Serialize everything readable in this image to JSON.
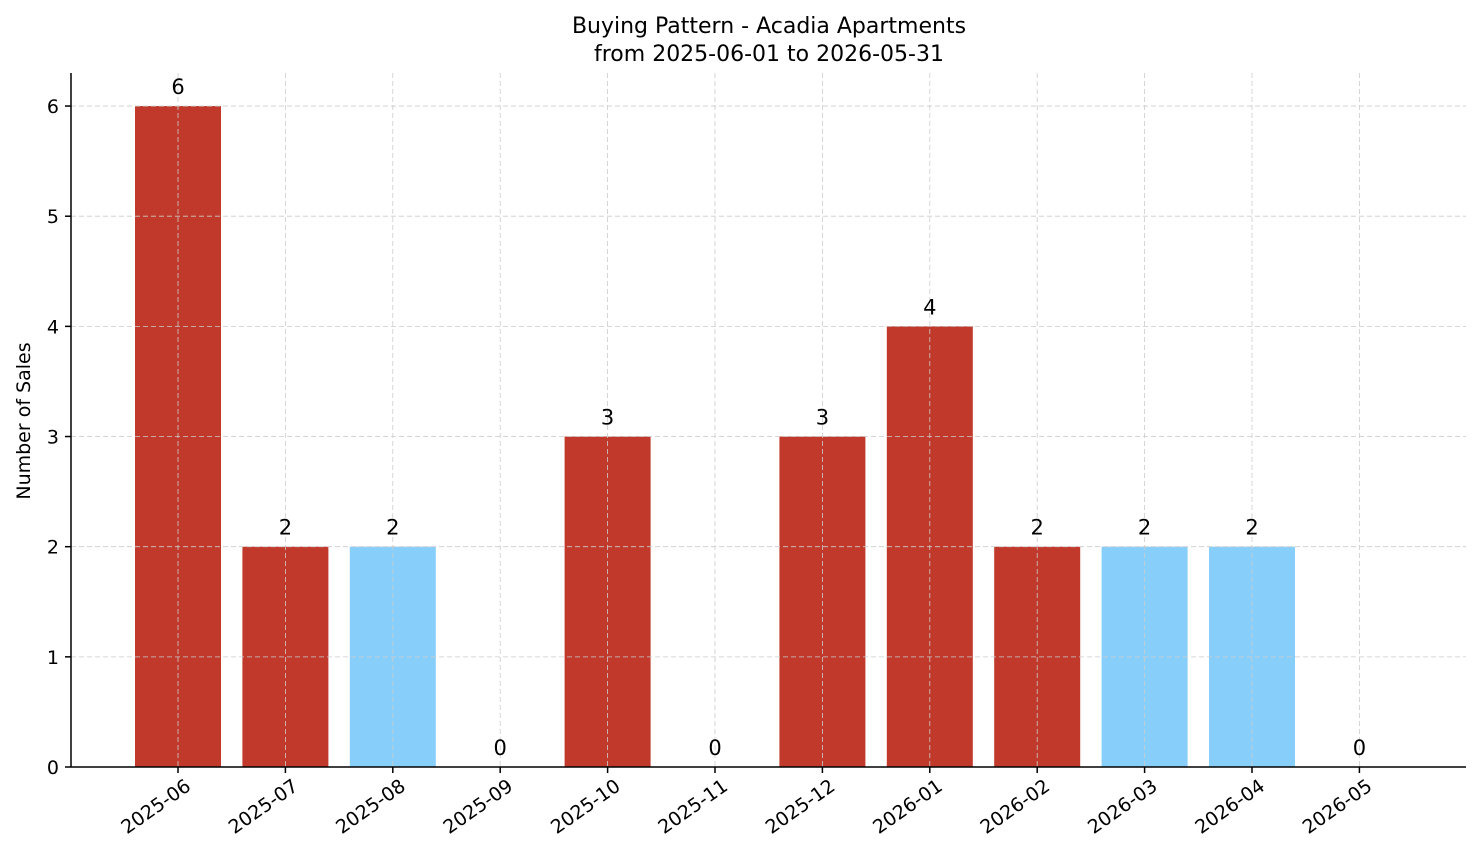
{
  "chart_data": {
    "type": "bar",
    "title": [
      "Buying Pattern - Acadia Apartments",
      "from 2025-06-01 to 2026-05-31"
    ],
    "xlabel": "",
    "ylabel": "Number of Sales",
    "categories": [
      "2025-06",
      "2025-07",
      "2025-08",
      "2025-09",
      "2025-10",
      "2025-11",
      "2025-12",
      "2026-01",
      "2026-02",
      "2026-03",
      "2026-04",
      "2026-05"
    ],
    "values": [
      6,
      2,
      2,
      0,
      3,
      0,
      3,
      4,
      2,
      2,
      2,
      0
    ],
    "bar_colors": [
      "#c0392b",
      "#c0392b",
      "#87cefa",
      "#c0392b",
      "#c0392b",
      "#c0392b",
      "#c0392b",
      "#c0392b",
      "#c0392b",
      "#87cefa",
      "#87cefa",
      "#c0392b"
    ],
    "ylim": [
      0,
      6.3
    ],
    "yticks": [
      0,
      1,
      2,
      3,
      4,
      5,
      6
    ],
    "grid": true,
    "data_labels": true,
    "colors": {
      "high": "#c0392b",
      "low": "#87cefa"
    }
  }
}
